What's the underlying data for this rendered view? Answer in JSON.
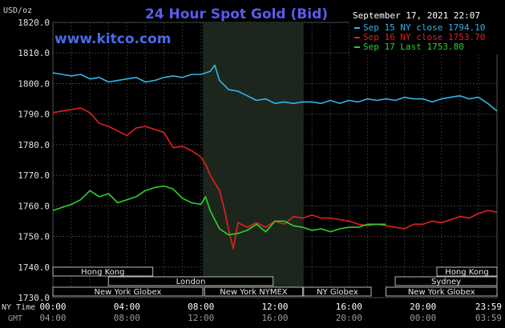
{
  "chart_data": {
    "type": "line",
    "title": "24 Hour Spot Gold (Bid)",
    "watermark": "www.kitco.com",
    "y_unit": "USD/oz",
    "timestamp": "September 17, 2021 22:07",
    "ylim": [
      1730,
      1820
    ],
    "y_ticks": [
      "1820.0",
      "1810.0",
      "1800.0",
      "1790.0",
      "1780.0",
      "1770.0",
      "1760.0",
      "1750.0",
      "1740.0",
      "1730.0"
    ],
    "x_label_primary": "NY Time",
    "x_label_secondary": "GMT",
    "x_ticks_ny": [
      "00:00",
      "04:00",
      "08:00",
      "12:00",
      "16:00",
      "20:00",
      "23:59"
    ],
    "x_ticks_gmt": [
      "04:00",
      "08:00",
      "12:00",
      "16:00",
      "20:00",
      "00:00",
      "03:59"
    ],
    "grid": true,
    "legend_position": "top-right",
    "highlight_hours": [
      8.1,
      13.55
    ],
    "sessions": [
      {
        "name": "Hong Kong",
        "start": 0,
        "end": 5.4
      },
      {
        "name": "London",
        "start": 3,
        "end": 11.9
      },
      {
        "name": "New York Globex",
        "start": 0,
        "end": 8.1
      },
      {
        "name": "New York NYMEX",
        "start": 8.2,
        "end": 13.5
      },
      {
        "name": "NY Globex",
        "start": 13.55,
        "end": 17.2
      },
      {
        "name": "Hong Kong",
        "start": 20.75,
        "end": 24
      },
      {
        "name": "Sydney",
        "start": 18.5,
        "end": 24
      },
      {
        "name": "New York Globex",
        "start": 18.0,
        "end": 24
      }
    ],
    "series": [
      {
        "name": "Sep 15 NY close 1794.10",
        "color": "#33b5e5",
        "x": [
          0,
          0.5,
          1,
          1.5,
          2,
          2.5,
          3,
          3.5,
          4,
          4.5,
          5,
          5.5,
          6,
          6.5,
          7,
          7.5,
          8,
          8.5,
          8.75,
          9,
          9.5,
          10,
          10.5,
          11,
          11.5,
          12,
          12.5,
          13,
          13.5,
          14,
          14.5,
          15,
          15.5,
          16,
          16.5,
          17,
          17.5,
          18,
          18.5,
          19,
          19.5,
          20,
          20.5,
          21,
          21.5,
          22,
          22.5,
          23,
          23.5,
          24
        ],
        "y": [
          1803.5,
          1803,
          1802.5,
          1803,
          1801.5,
          1802,
          1800.5,
          1801,
          1801.5,
          1802,
          1800.5,
          1801,
          1802,
          1802.5,
          1802,
          1803,
          1803,
          1804,
          1806,
          1801,
          1798,
          1797.5,
          1796,
          1794.5,
          1795,
          1793.5,
          1794,
          1793.5,
          1794,
          1794,
          1793.5,
          1794.5,
          1793.5,
          1794.5,
          1794,
          1795,
          1794.5,
          1795,
          1794.5,
          1795.5,
          1795,
          1795,
          1794,
          1795,
          1795.5,
          1796,
          1795,
          1795.5,
          1793.5,
          1791
        ]
      },
      {
        "name": "Sep 16 NY close 1753.70",
        "color": "#e02020",
        "x": [
          0,
          0.5,
          1,
          1.5,
          2,
          2.5,
          3,
          3.5,
          4,
          4.5,
          5,
          5.5,
          6,
          6.5,
          7,
          7.5,
          8,
          8.3,
          8.5,
          9,
          9.3,
          9.5,
          9.75,
          10,
          10.5,
          11,
          11.5,
          12,
          12.5,
          13,
          13.5,
          14,
          14.5,
          15,
          15.5,
          16,
          16.5,
          17,
          17.5,
          18,
          18.5,
          19,
          19.5,
          20,
          20.5,
          21,
          21.5,
          22,
          22.5,
          23,
          23.5,
          24
        ],
        "y": [
          1790.5,
          1791,
          1791.5,
          1792,
          1790.5,
          1787,
          1786,
          1784.5,
          1783,
          1785.5,
          1786,
          1785,
          1784,
          1779,
          1779.5,
          1778,
          1776,
          1773,
          1770,
          1765,
          1758,
          1752,
          1746,
          1754.5,
          1753,
          1754.5,
          1753,
          1755,
          1754,
          1756.5,
          1756,
          1757,
          1756,
          1756,
          1755.5,
          1755,
          1754,
          1753.5,
          1754,
          1753.5,
          1753,
          1752.5,
          1754,
          1754,
          1755,
          1754.5,
          1755.5,
          1756.5,
          1756,
          1757.5,
          1758.5,
          1758
        ]
      },
      {
        "name": "Sep 17 Last 1753.80",
        "color": "#2ad42a",
        "x": [
          0,
          0.5,
          1,
          1.5,
          2,
          2.5,
          3,
          3.5,
          4,
          4.5,
          5,
          5.5,
          6,
          6.5,
          7,
          7.5,
          8,
          8.25,
          8.5,
          9,
          9.5,
          10,
          10.5,
          11,
          11.5,
          12,
          12.5,
          13,
          13.5,
          14,
          14.5,
          15,
          15.5,
          16,
          16.5,
          17,
          17.5,
          18
        ],
        "y": [
          1758.5,
          1759.5,
          1760.5,
          1762,
          1765,
          1763,
          1764,
          1761,
          1762,
          1763,
          1765,
          1766,
          1766.5,
          1765.5,
          1762.5,
          1761,
          1760.5,
          1763,
          1758.5,
          1752.5,
          1750.5,
          1751,
          1752,
          1754,
          1751.5,
          1755,
          1755,
          1753.5,
          1753,
          1752,
          1752.5,
          1751.5,
          1752.5,
          1753,
          1753,
          1754,
          1754,
          1754
        ]
      }
    ]
  }
}
